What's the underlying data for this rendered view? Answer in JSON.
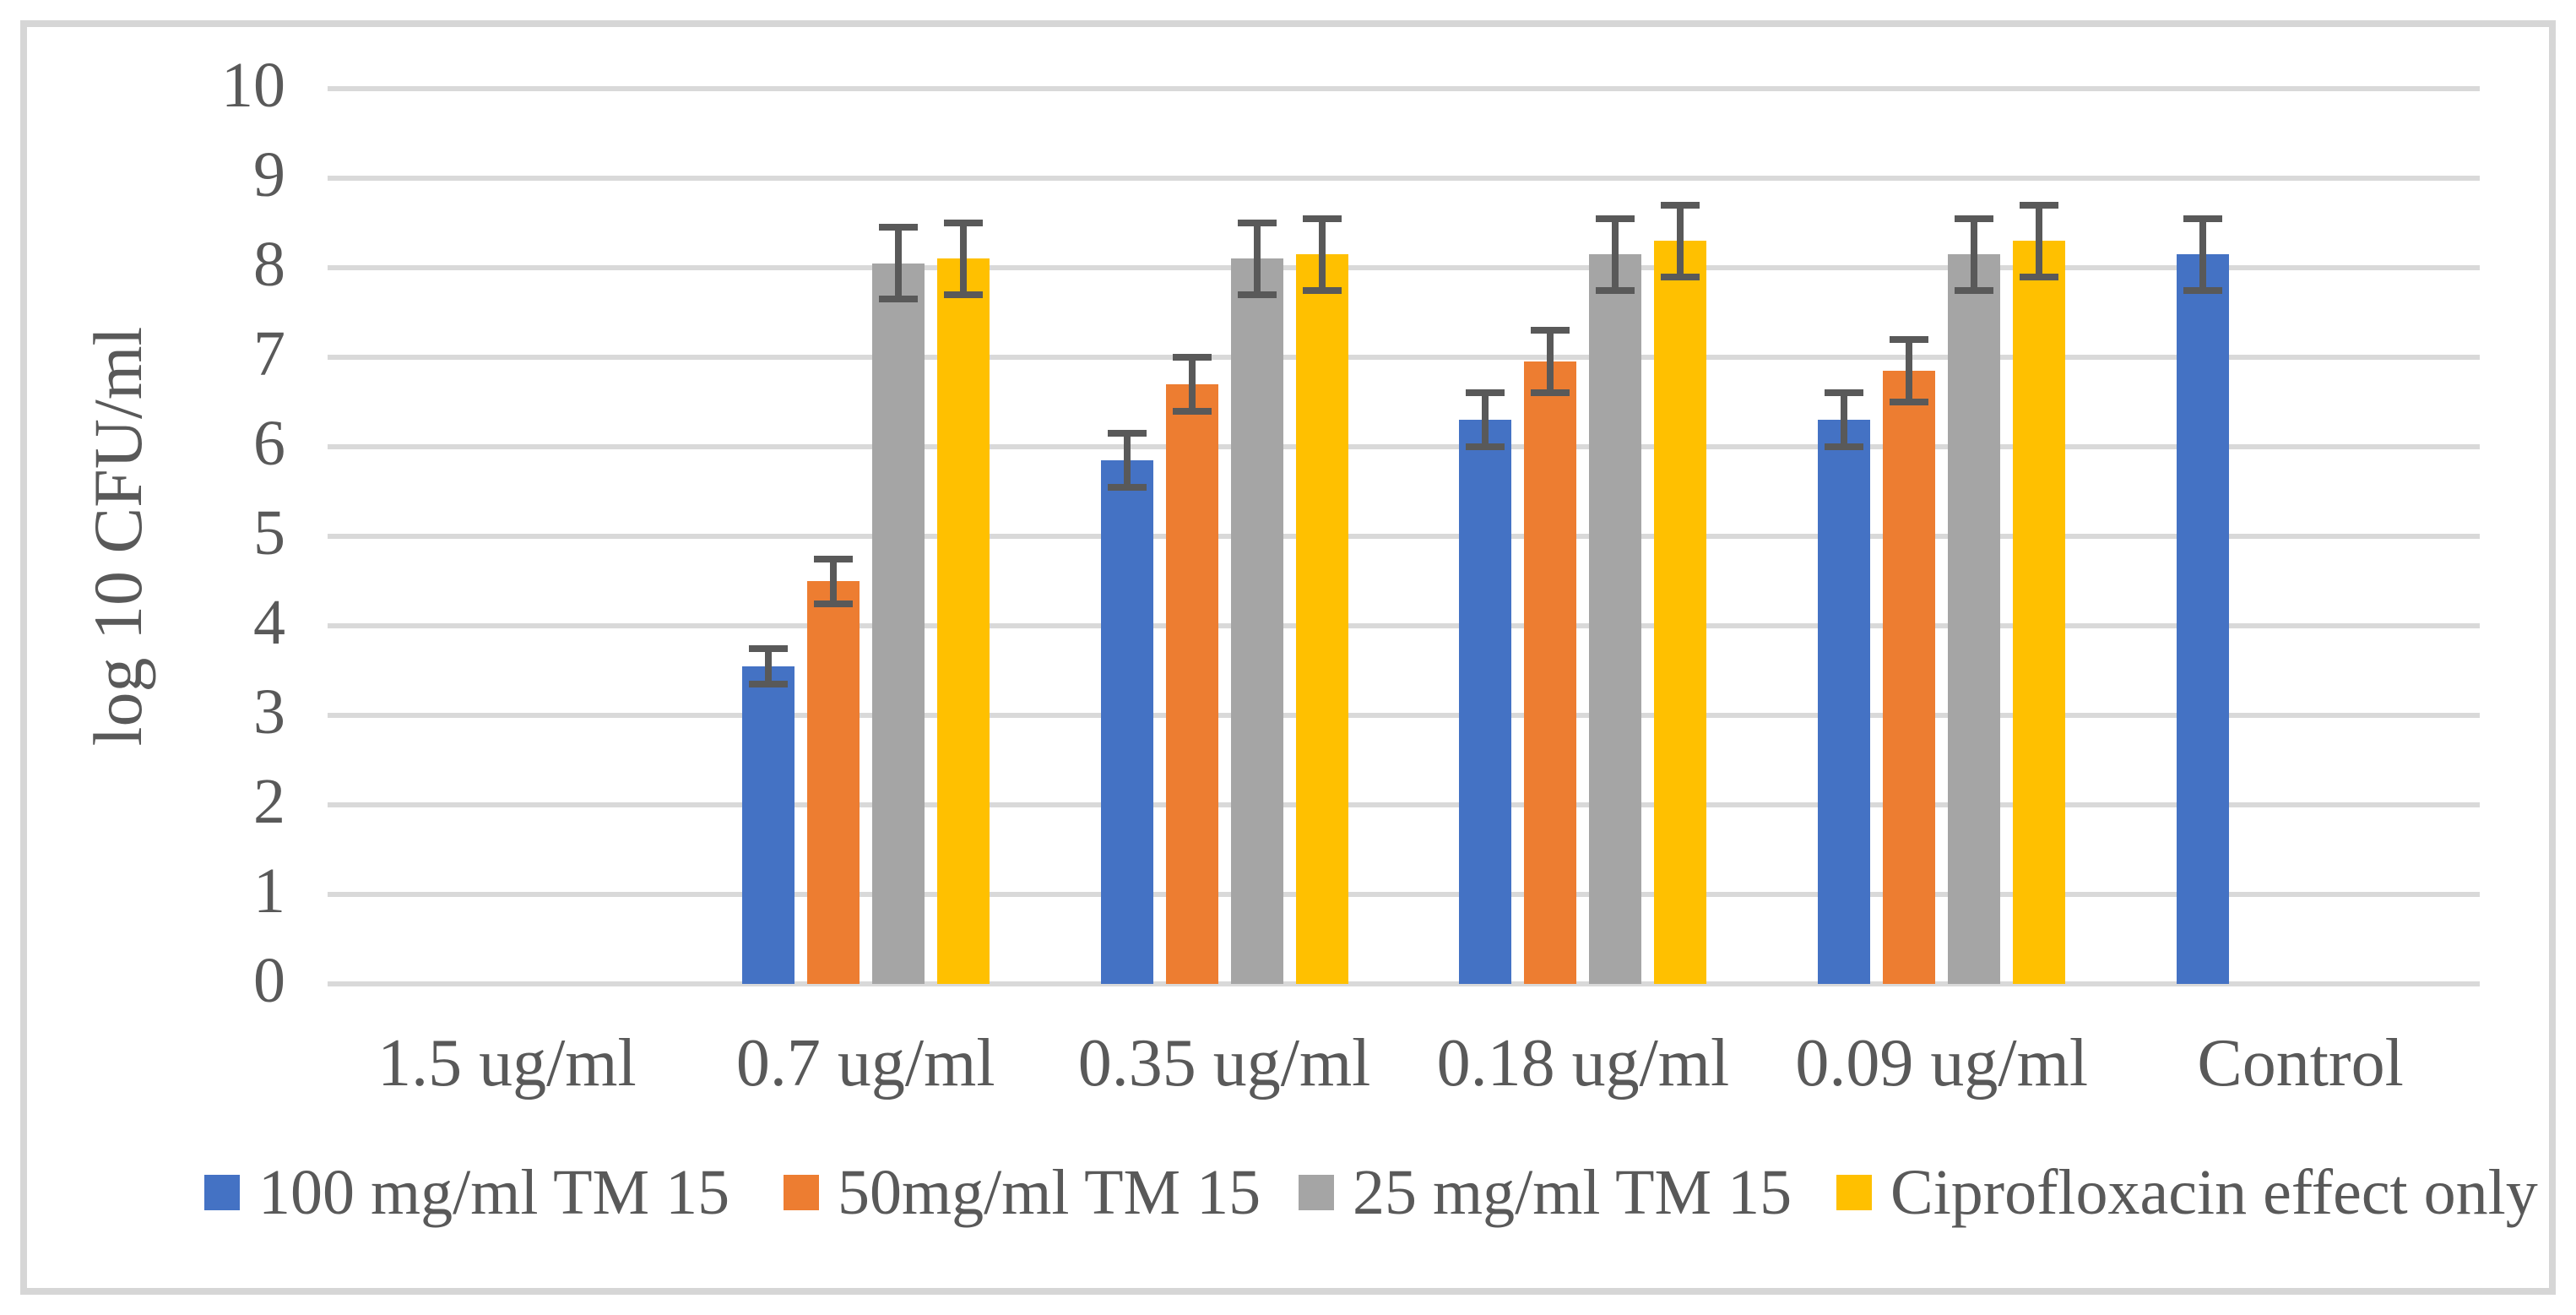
{
  "figure": {
    "background": "#ffffff",
    "frame_color": "#d6d6d6"
  },
  "chart_data": {
    "type": "bar",
    "title": "",
    "xlabel": "",
    "ylabel": "log 10 CFU/ml",
    "ylim": [
      0,
      10
    ],
    "yticks": [
      "0",
      "1",
      "2",
      "3",
      "4",
      "5",
      "6",
      "7",
      "8",
      "9",
      "10"
    ],
    "grid": true,
    "legend_position": "bottom",
    "categories": [
      "1.5 ug/ml",
      "0.7 ug/ml",
      "0.35 ug/ml",
      "0.18 ug/ml",
      "0.09 ug/ml",
      "Control"
    ],
    "series": [
      {
        "name": "100 mg/ml TM 15",
        "color": "#4472C4",
        "values": [
          0,
          3.55,
          5.85,
          6.3,
          6.3,
          8.15
        ],
        "errors": [
          0,
          0.2,
          0.3,
          0.3,
          0.3,
          0.4
        ]
      },
      {
        "name": "50mg/ml TM 15",
        "color": "#ED7D31",
        "values": [
          0,
          4.5,
          6.7,
          6.95,
          6.85,
          0
        ],
        "errors": [
          0,
          0.25,
          0.3,
          0.35,
          0.35,
          0
        ]
      },
      {
        "name": "25 mg/ml TM 15",
        "color": "#A5A5A5",
        "values": [
          0,
          8.05,
          8.1,
          8.15,
          8.15,
          0
        ],
        "errors": [
          0,
          0.4,
          0.4,
          0.4,
          0.4,
          0
        ]
      },
      {
        "name": "Ciprofloxacin effect only",
        "color": "#FFC000",
        "values": [
          0,
          8.1,
          8.15,
          8.3,
          8.3,
          0
        ],
        "errors": [
          0,
          0.4,
          0.4,
          0.4,
          0.4,
          0
        ]
      }
    ],
    "error_bar_color": "#595959",
    "gridline_color": "#d9d9d9",
    "text_color": "#595959"
  }
}
